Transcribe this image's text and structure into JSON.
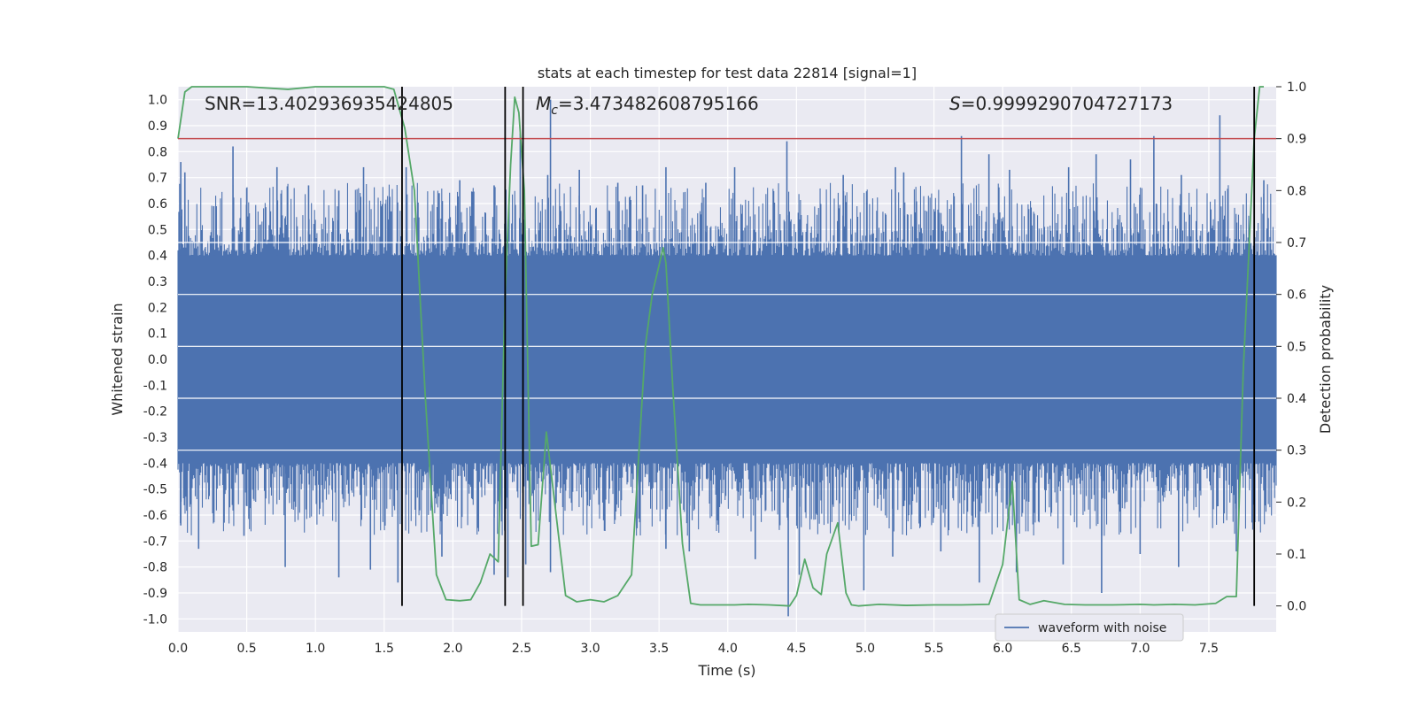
{
  "chart_data": {
    "type": "line",
    "title": "stats at each timestep for test data 22814 [signal=1]",
    "xlabel": "Time (s)",
    "ylabel": "Whitened strain",
    "ylabel_right": "Detection probability",
    "xlim": [
      0.0,
      7.99
    ],
    "ylim": [
      -1.05,
      1.05
    ],
    "ylim_right": [
      -0.05,
      1.0
    ],
    "x_ticks": [
      "0.0",
      "0.5",
      "1.0",
      "1.5",
      "2.0",
      "2.5",
      "3.0",
      "3.5",
      "4.0",
      "4.5",
      "5.0",
      "5.5",
      "6.0",
      "6.5",
      "7.0",
      "7.5"
    ],
    "y_ticks": [
      "1.0",
      "0.9",
      "0.8",
      "0.7",
      "0.6",
      "0.5",
      "0.4",
      "0.3",
      "0.2",
      "0.1",
      "0.0",
      "-0.1",
      "-0.2",
      "-0.3",
      "-0.4",
      "-0.5",
      "-0.6",
      "-0.7",
      "-0.8",
      "-0.9",
      "-1.0"
    ],
    "y_ticks_right": [
      "1.0",
      "0.9",
      "0.8",
      "0.7",
      "0.6",
      "0.5",
      "0.4",
      "0.3",
      "0.2",
      "0.1",
      "0.0"
    ],
    "grid": true,
    "legend_position": "lower-right",
    "annotations": {
      "snr": "SNR=13.402936935424805",
      "mc_symbol": "M",
      "mc_sub": "c",
      "mc_value": "=3.473482608795166",
      "s_symbol": "S",
      "s_value": "=0.9999290704727173"
    },
    "series": [
      {
        "name": "waveform with noise",
        "axis": "left",
        "color": "#4c72b0",
        "kind": "noise-band",
        "core_amplitude": 0.4,
        "max_spike_amplitude": 1.0,
        "spikes_up": [
          [
            0.02,
            0.76
          ],
          [
            0.05,
            0.72
          ],
          [
            0.26,
            0.59
          ],
          [
            0.4,
            0.82
          ],
          [
            0.5,
            0.66
          ],
          [
            0.72,
            0.74
          ],
          [
            0.95,
            0.67
          ],
          [
            1.17,
            0.65
          ],
          [
            1.35,
            0.74
          ],
          [
            1.55,
            0.57
          ],
          [
            1.66,
            0.74
          ],
          [
            1.9,
            0.64
          ],
          [
            2.05,
            0.69
          ],
          [
            2.3,
            0.67
          ],
          [
            2.49,
            0.87
          ],
          [
            2.69,
            0.71
          ],
          [
            2.71,
            1.0
          ],
          [
            2.92,
            0.73
          ],
          [
            3.2,
            0.68
          ],
          [
            3.38,
            0.67
          ],
          [
            3.55,
            0.74
          ],
          [
            3.84,
            0.68
          ],
          [
            4.05,
            0.74
          ],
          [
            4.43,
            0.84
          ],
          [
            4.84,
            0.71
          ],
          [
            5.22,
            0.74
          ],
          [
            5.28,
            0.72
          ],
          [
            5.7,
            0.86
          ],
          [
            5.9,
            0.79
          ],
          [
            6.05,
            0.73
          ],
          [
            6.48,
            0.74
          ],
          [
            6.68,
            0.79
          ],
          [
            6.93,
            0.77
          ],
          [
            7.1,
            0.86
          ],
          [
            7.3,
            0.71
          ],
          [
            7.58,
            0.94
          ],
          [
            7.9,
            0.69
          ]
        ],
        "spikes_down": [
          [
            0.02,
            -0.64
          ],
          [
            0.15,
            -0.73
          ],
          [
            0.48,
            -0.68
          ],
          [
            0.78,
            -0.8
          ],
          [
            1.17,
            -0.84
          ],
          [
            1.4,
            -0.81
          ],
          [
            1.6,
            -0.86
          ],
          [
            1.92,
            -0.76
          ],
          [
            2.3,
            -0.83
          ],
          [
            2.4,
            -0.84
          ],
          [
            2.53,
            -0.79
          ],
          [
            2.71,
            -0.82
          ],
          [
            3.55,
            -0.73
          ],
          [
            3.72,
            -0.74
          ],
          [
            4.2,
            -0.77
          ],
          [
            4.44,
            -0.99
          ],
          [
            4.52,
            -0.83
          ],
          [
            4.99,
            -0.89
          ],
          [
            5.2,
            -0.76
          ],
          [
            5.55,
            -0.74
          ],
          [
            5.83,
            -0.86
          ],
          [
            6.1,
            -0.82
          ],
          [
            6.44,
            -0.79
          ],
          [
            6.72,
            -0.9
          ],
          [
            7.0,
            -0.75
          ],
          [
            7.28,
            -0.8
          ],
          [
            7.7,
            -0.74
          ],
          [
            7.82,
            -0.56
          ]
        ]
      },
      {
        "name": "detection probability",
        "axis": "right",
        "color": "#55a868",
        "x": [
          0.0,
          0.05,
          0.1,
          0.2,
          0.5,
          0.8,
          1.0,
          1.2,
          1.5,
          1.57,
          1.65,
          1.72,
          1.8,
          1.88,
          1.95,
          2.05,
          2.13,
          2.2,
          2.27,
          2.33,
          2.38,
          2.42,
          2.45,
          2.48,
          2.52,
          2.57,
          2.62,
          2.68,
          2.74,
          2.82,
          2.9,
          3.0,
          3.1,
          3.2,
          3.3,
          3.4,
          3.45,
          3.53,
          3.55,
          3.6,
          3.67,
          3.73,
          3.8,
          3.9,
          4.05,
          4.15,
          4.3,
          4.45,
          4.5,
          4.56,
          4.62,
          4.68,
          4.72,
          4.8,
          4.86,
          4.9,
          4.95,
          5.1,
          5.3,
          5.5,
          5.7,
          5.9,
          6.0,
          6.07,
          6.12,
          6.2,
          6.3,
          6.45,
          6.6,
          6.8,
          7.0,
          7.1,
          7.25,
          7.4,
          7.55,
          7.63,
          7.7,
          7.75,
          7.83,
          7.87,
          7.9
        ],
        "y": [
          0.9,
          0.99,
          1.0,
          1.0,
          1.0,
          0.995,
          1.0,
          1.0,
          1.0,
          0.995,
          0.92,
          0.8,
          0.4,
          0.06,
          0.012,
          0.01,
          0.012,
          0.045,
          0.1,
          0.085,
          0.6,
          0.85,
          0.98,
          0.95,
          0.8,
          0.115,
          0.118,
          0.335,
          0.2,
          0.02,
          0.008,
          0.012,
          0.008,
          0.02,
          0.06,
          0.5,
          0.6,
          0.69,
          0.66,
          0.42,
          0.12,
          0.005,
          0.002,
          0.002,
          0.002,
          0.003,
          0.002,
          0.0,
          0.02,
          0.09,
          0.035,
          0.022,
          0.1,
          0.16,
          0.025,
          0.002,
          0.0,
          0.003,
          0.001,
          0.002,
          0.002,
          0.003,
          0.08,
          0.24,
          0.012,
          0.003,
          0.01,
          0.003,
          0.002,
          0.002,
          0.003,
          0.002,
          0.003,
          0.002,
          0.005,
          0.018,
          0.018,
          0.45,
          0.9,
          1.0,
          1.0
        ]
      }
    ],
    "reference_lines": {
      "threshold_y_right": 0.9,
      "threshold_color": "#c44e52",
      "vertical_x": [
        1.63,
        2.38,
        2.51,
        7.83
      ],
      "vertical_color": "#000000"
    }
  }
}
